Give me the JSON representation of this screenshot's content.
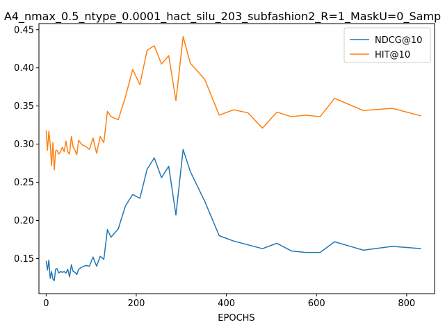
{
  "chart_data": {
    "type": "line",
    "title": "A4_nmax_0.5_ntype_0.0001_hact_silu_203_subfashion2_R=1_MaskU=0_Samp",
    "xlabel": "EPOCHS",
    "ylabel": "",
    "xlim": [
      -16,
      862
    ],
    "ylim": [
      0.104,
      0.458
    ],
    "x_ticks": [
      0,
      200,
      400,
      600,
      800
    ],
    "x_tick_labels": [
      "0",
      "200",
      "400",
      "600",
      "800"
    ],
    "y_ticks": [
      0.15,
      0.2,
      0.25,
      0.3,
      0.35,
      0.4,
      0.45
    ],
    "y_tick_labels": [
      "0.15",
      "0.20",
      "0.25",
      "0.30",
      "0.35",
      "0.40",
      "0.45"
    ],
    "grid": false,
    "legend_position": "top-right",
    "series": [
      {
        "name": "NDCG@10",
        "color": "#1f77b4",
        "x": [
          0,
          3,
          6,
          9,
          12,
          15,
          18,
          21,
          24,
          28,
          32,
          36,
          40,
          44,
          48,
          52,
          56,
          60,
          64,
          68,
          72,
          80,
          88,
          96,
          104,
          112,
          120,
          128,
          136,
          144,
          160,
          176,
          192,
          208,
          224,
          240,
          256,
          272,
          288,
          304,
          320,
          352,
          384,
          416,
          448,
          480,
          512,
          544,
          576,
          608,
          640,
          704,
          768,
          832
        ],
        "y": [
          0.147,
          0.135,
          0.148,
          0.124,
          0.133,
          0.123,
          0.121,
          0.136,
          0.137,
          0.131,
          0.133,
          0.132,
          0.133,
          0.131,
          0.136,
          0.126,
          0.142,
          0.133,
          0.132,
          0.129,
          0.136,
          0.139,
          0.141,
          0.14,
          0.152,
          0.14,
          0.153,
          0.149,
          0.188,
          0.178,
          0.189,
          0.219,
          0.234,
          0.229,
          0.267,
          0.282,
          0.256,
          0.271,
          0.207,
          0.293,
          0.264,
          0.225,
          0.18,
          0.173,
          0.168,
          0.163,
          0.17,
          0.16,
          0.158,
          0.158,
          0.172,
          0.161,
          0.166,
          0.163
        ]
      },
      {
        "name": "HIT@10",
        "color": "#ff7f0e",
        "x": [
          0,
          3,
          6,
          9,
          12,
          15,
          18,
          21,
          24,
          28,
          32,
          36,
          40,
          44,
          48,
          52,
          56,
          60,
          64,
          68,
          72,
          80,
          88,
          96,
          104,
          112,
          120,
          128,
          136,
          144,
          160,
          176,
          192,
          208,
          224,
          240,
          256,
          272,
          288,
          304,
          320,
          352,
          384,
          416,
          448,
          480,
          512,
          544,
          576,
          608,
          640,
          704,
          768,
          832
        ],
        "y": [
          0.318,
          0.292,
          0.317,
          0.3,
          0.272,
          0.302,
          0.266,
          0.291,
          0.292,
          0.287,
          0.29,
          0.296,
          0.29,
          0.304,
          0.29,
          0.287,
          0.31,
          0.296,
          0.292,
          0.286,
          0.305,
          0.299,
          0.297,
          0.293,
          0.308,
          0.288,
          0.31,
          0.302,
          0.343,
          0.336,
          0.332,
          0.362,
          0.398,
          0.378,
          0.423,
          0.429,
          0.405,
          0.416,
          0.357,
          0.441,
          0.406,
          0.385,
          0.338,
          0.345,
          0.341,
          0.321,
          0.342,
          0.336,
          0.338,
          0.336,
          0.36,
          0.344,
          0.347,
          0.337
        ]
      }
    ]
  }
}
